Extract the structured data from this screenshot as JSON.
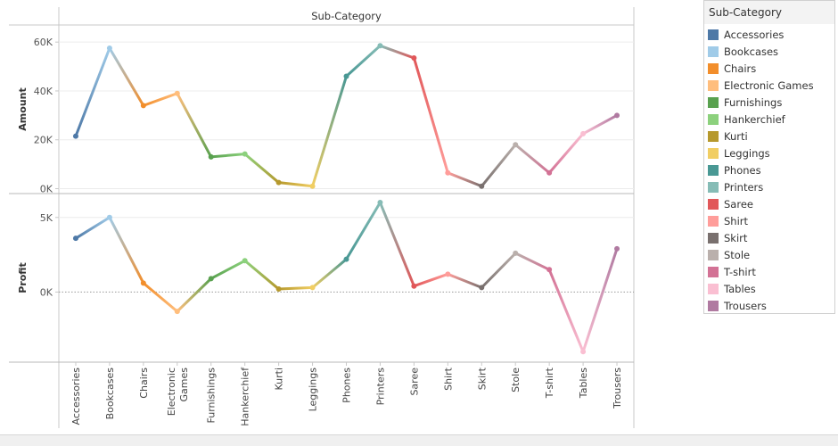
{
  "chart_data": {
    "type": "line",
    "header": "Sub-Category",
    "categories": [
      "Accessories",
      "Bookcases",
      "Chairs",
      "Electronic Games",
      "Furnishings",
      "Hankerchief",
      "Kurti",
      "Leggings",
      "Phones",
      "Printers",
      "Saree",
      "Shirt",
      "Skirt",
      "Stole",
      "T-shirt",
      "Tables",
      "Trousers"
    ],
    "category_labels": [
      [
        "Accessories"
      ],
      [
        "Bookcases"
      ],
      [
        "Chairs"
      ],
      [
        "Electronic",
        "Games"
      ],
      [
        "Furnishings"
      ],
      [
        "Hankerchief"
      ],
      [
        "Kurti"
      ],
      [
        "Leggings"
      ],
      [
        "Phones"
      ],
      [
        "Printers"
      ],
      [
        "Saree"
      ],
      [
        "Shirt"
      ],
      [
        "Skirt"
      ],
      [
        "Stole"
      ],
      [
        "T-shirt"
      ],
      [
        "Tables"
      ],
      [
        "Trousers"
      ]
    ],
    "colors": [
      "#4e79a7",
      "#a0cbe8",
      "#f28e2b",
      "#ffbe7d",
      "#59a14f",
      "#8cd17d",
      "#b6992d",
      "#f1ce63",
      "#499894",
      "#86bcb6",
      "#e15759",
      "#ff9d9a",
      "#79706e",
      "#bab0ac",
      "#d37295",
      "#fabfd2",
      "#b07aa1"
    ],
    "series": [
      {
        "name": "Amount",
        "values": [
          21500,
          57500,
          34000,
          39000,
          13000,
          14200,
          2500,
          1000,
          46000,
          58500,
          53500,
          6500,
          1000,
          18000,
          6500,
          22500,
          30000
        ]
      },
      {
        "name": "Profit",
        "values": [
          3600,
          5000,
          600,
          -1300,
          900,
          2100,
          200,
          300,
          2200,
          6000,
          400,
          1200,
          300,
          2600,
          1500,
          -4000,
          2900
        ]
      }
    ],
    "panels": [
      {
        "ylabel": "Amount",
        "ylim": [
          -2000,
          67000
        ],
        "ticks": [
          0,
          20000,
          40000,
          60000
        ],
        "tick_labels": [
          "0K",
          "20K",
          "40K",
          "60K"
        ]
      },
      {
        "ylabel": "Profit",
        "ylim": [
          -4700,
          6600
        ],
        "ticks": [
          0,
          5000
        ],
        "tick_labels": [
          "0K",
          "5K"
        ]
      }
    ],
    "legend": {
      "title": "Sub-Category",
      "position": "right"
    },
    "grid": true
  }
}
